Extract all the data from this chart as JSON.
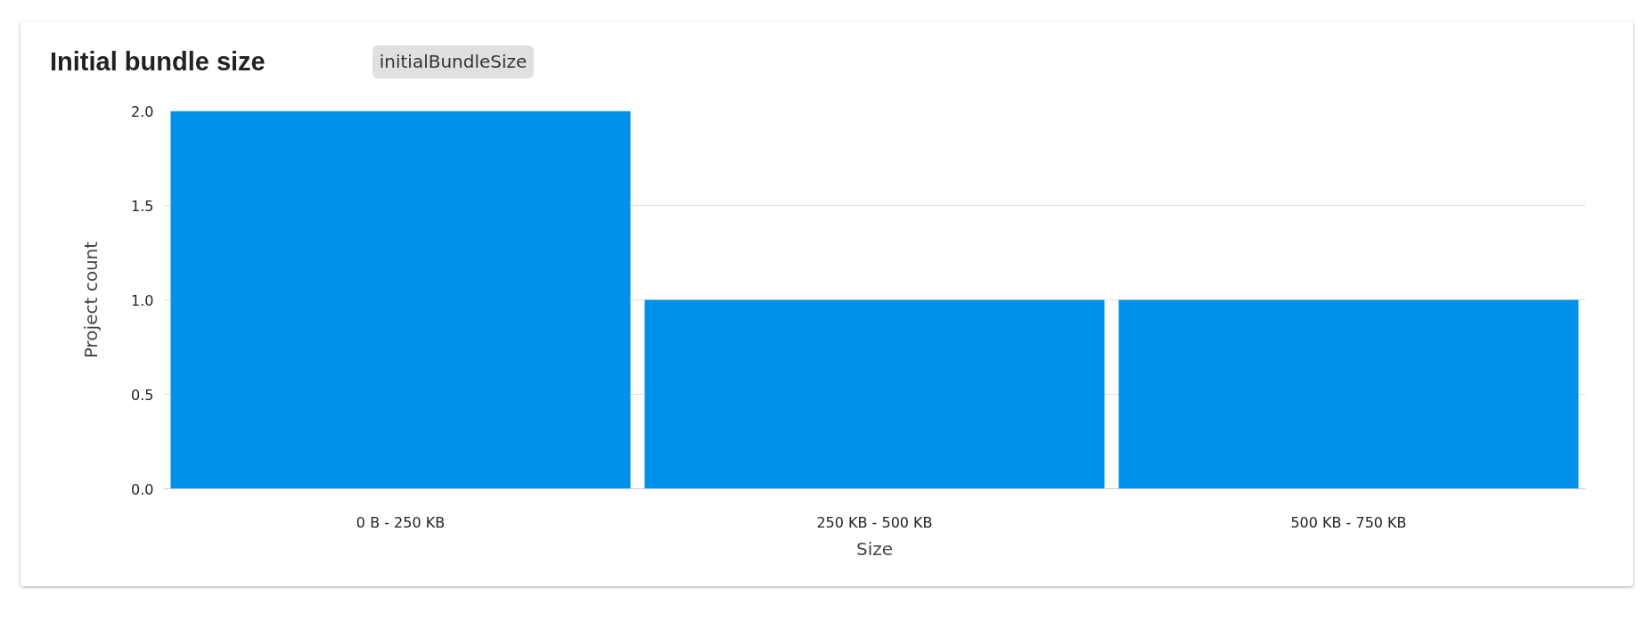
{
  "chart_data": {
    "type": "bar",
    "title": "Initial bundle size",
    "subtitle": "initialBundleSize",
    "xlabel": "Size",
    "ylabel": "Project count",
    "categories": [
      "0 B - 250 KB",
      "250 KB - 500 KB",
      "500 KB - 750 KB"
    ],
    "values": [
      2,
      1,
      1
    ],
    "color": "#0091ea",
    "ylim": [
      0,
      2
    ],
    "yticks": [
      {
        "value": 0,
        "label": "0.0"
      },
      {
        "value": 0.5,
        "label": "0.5"
      },
      {
        "value": 1,
        "label": "1.0"
      },
      {
        "value": 1.5,
        "label": "1.5"
      },
      {
        "value": 2,
        "label": "2.0"
      }
    ],
    "grid": "y"
  }
}
